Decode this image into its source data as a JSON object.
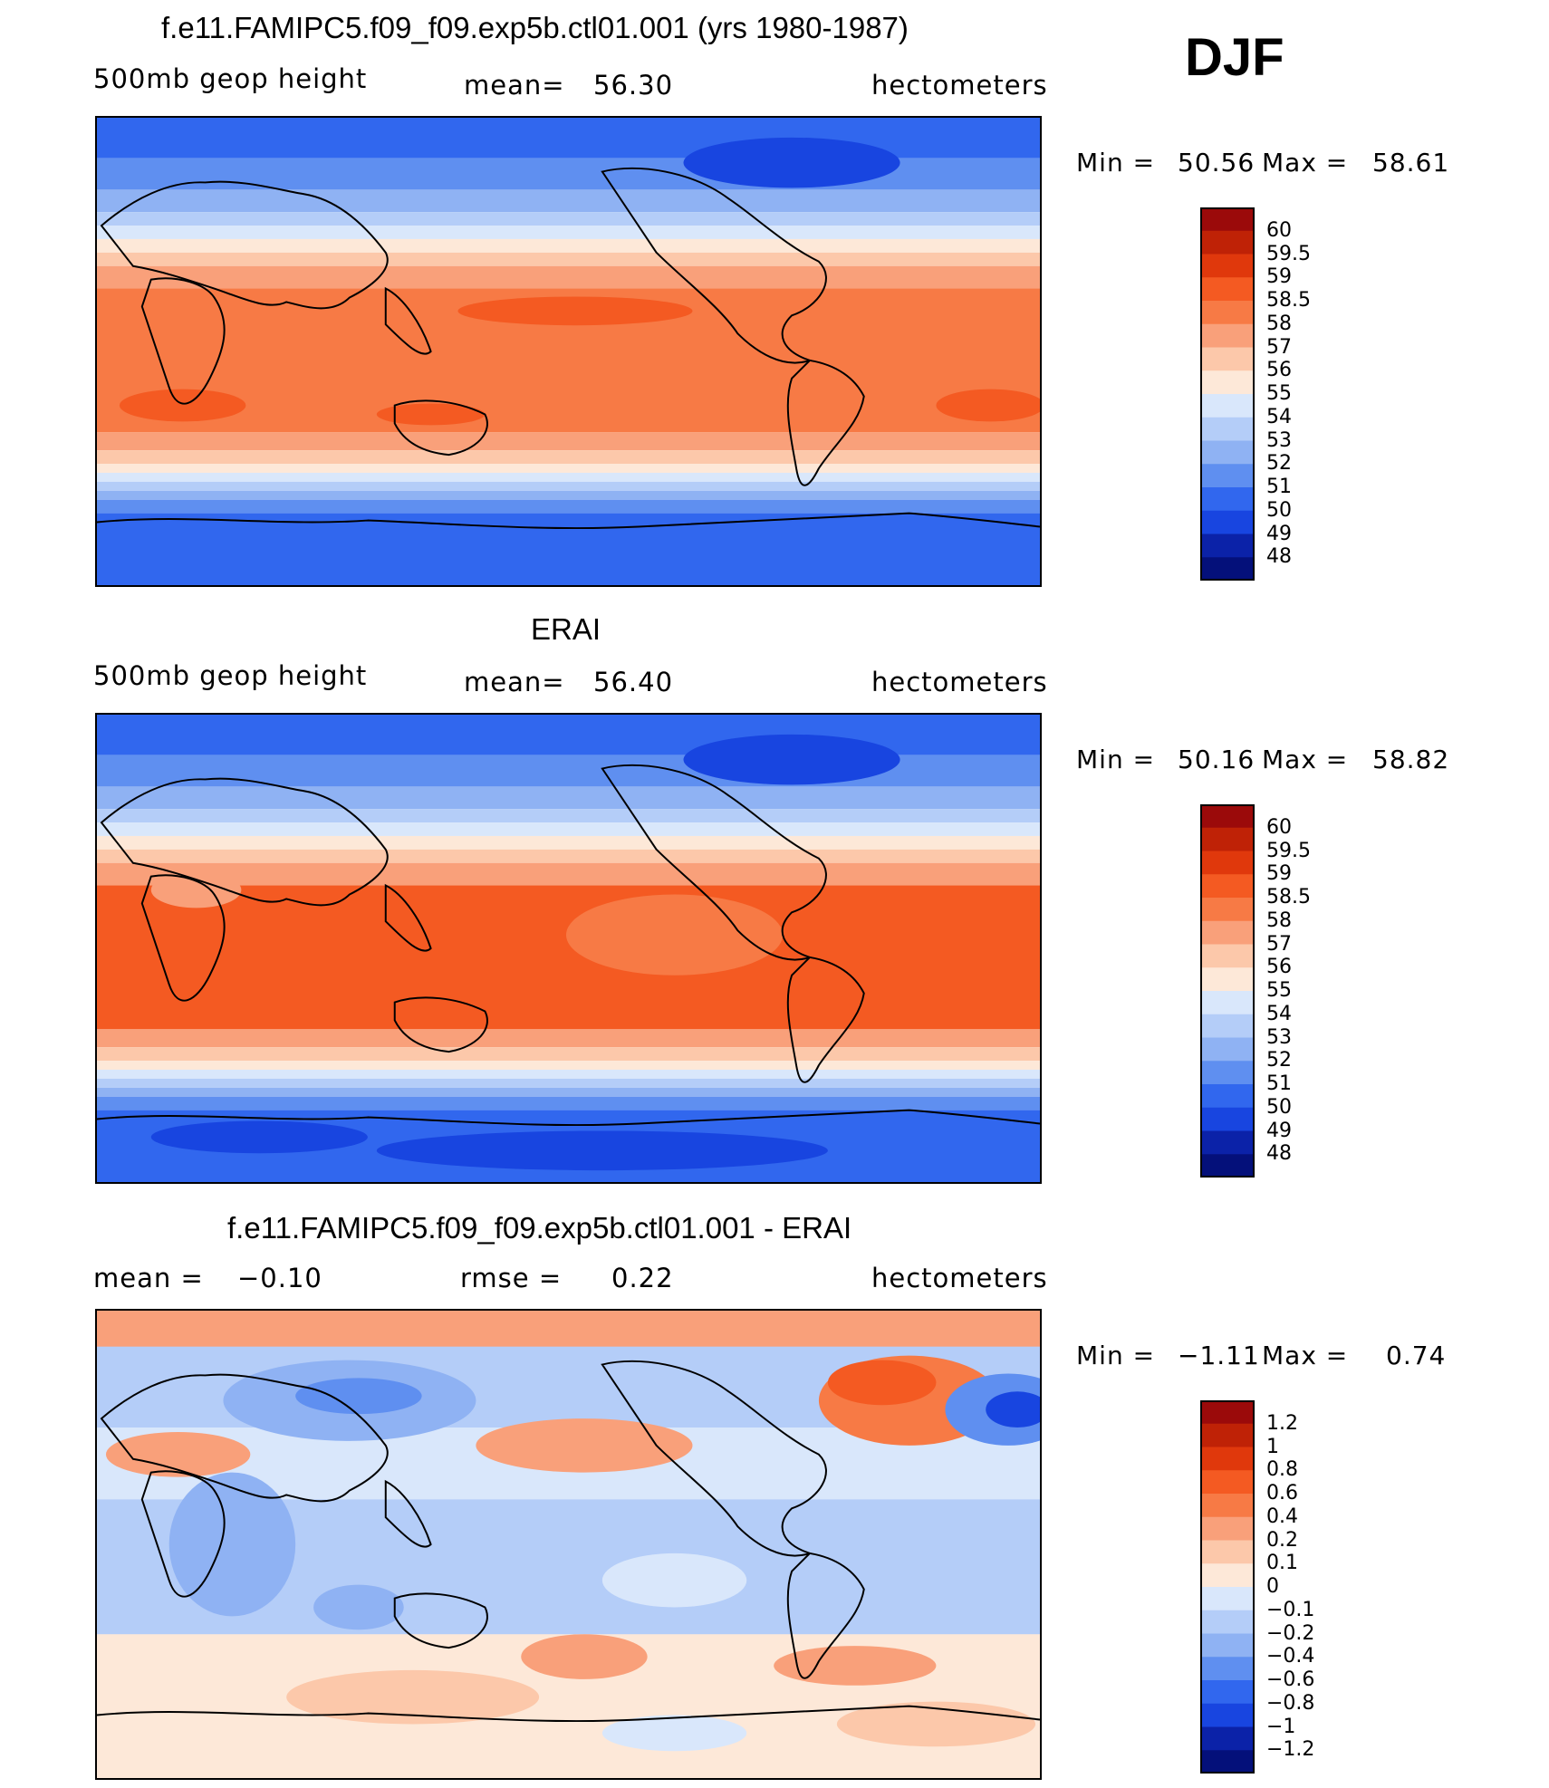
{
  "season": "DJF",
  "chart_data": [
    {
      "type": "heatmap",
      "title": "f.e11.FAMIPC5.f09_f09.exp5b.ctl01.001 (yrs 1980-1987)",
      "variable_label": "500mb geop height",
      "stat_label": "mean=",
      "stat_value": "56.30",
      "units": "hectometers",
      "min_label": "Min =",
      "min_value": "50.56",
      "max_label": "Max =",
      "max_value": "58.61",
      "colorbar_levels": [
        "60",
        "59.5",
        "59",
        "58.5",
        "58",
        "57",
        "56",
        "55",
        "54",
        "53",
        "52",
        "51",
        "50",
        "49",
        "48"
      ],
      "colorbar_colors": [
        "#9b0a0a",
        "#bf2206",
        "#e0380c",
        "#f45a22",
        "#f77a45",
        "#f9a07a",
        "#fcc8aa",
        "#fde8d8",
        "#d9e7fb",
        "#b4cdf8",
        "#8fb2f3",
        "#5f8ff0",
        "#3167ee",
        "#1845e0",
        "#0b22a8",
        "#04107a"
      ],
      "field": "model"
    },
    {
      "type": "heatmap",
      "title": "ERAI",
      "variable_label": "500mb geop height",
      "stat_label": "mean=",
      "stat_value": "56.40",
      "units": "hectometers",
      "min_label": "Min =",
      "min_value": "50.16",
      "max_label": "Max =",
      "max_value": "58.82",
      "colorbar_levels": [
        "60",
        "59.5",
        "59",
        "58.5",
        "58",
        "57",
        "56",
        "55",
        "54",
        "53",
        "52",
        "51",
        "50",
        "49",
        "48"
      ],
      "colorbar_colors": [
        "#9b0a0a",
        "#bf2206",
        "#e0380c",
        "#f45a22",
        "#f77a45",
        "#f9a07a",
        "#fcc8aa",
        "#fde8d8",
        "#d9e7fb",
        "#b4cdf8",
        "#8fb2f3",
        "#5f8ff0",
        "#3167ee",
        "#1845e0",
        "#0b22a8",
        "#04107a"
      ],
      "field": "obs"
    },
    {
      "type": "heatmap",
      "title": "f.e11.FAMIPC5.f09_f09.exp5b.ctl01.001 - ERAI",
      "stat_label": "mean =",
      "stat_value": "−0.10",
      "stat2_label": "rmse =",
      "stat2_value": "0.22",
      "units": "hectometers",
      "min_label": "Min =",
      "min_value": "−1.11",
      "max_label": "Max =",
      "max_value": "0.74",
      "colorbar_levels": [
        "1.2",
        "1",
        "0.8",
        "0.6",
        "0.4",
        "0.2",
        "0.1",
        "0",
        "−0.1",
        "−0.2",
        "−0.4",
        "−0.6",
        "−0.8",
        "−1",
        "−1.2"
      ],
      "colorbar_colors": [
        "#9b0a0a",
        "#bf2206",
        "#e0380c",
        "#f45a22",
        "#f77a45",
        "#f9a07a",
        "#fcc8aa",
        "#fde8d8",
        "#d9e7fb",
        "#b4cdf8",
        "#8fb2f3",
        "#5f8ff0",
        "#3167ee",
        "#1845e0",
        "#0b22a8",
        "#04107a"
      ],
      "field": "diff"
    }
  ]
}
